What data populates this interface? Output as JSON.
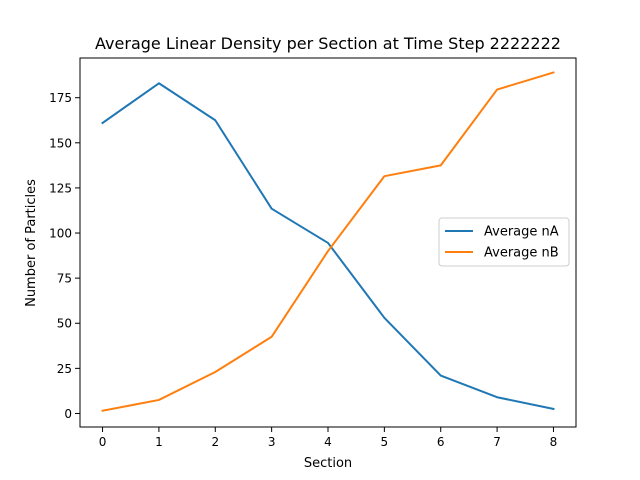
{
  "chart_data": {
    "type": "line",
    "title": "Average Linear Density per Section at Time Step 2222222",
    "xlabel": "Section",
    "ylabel": "Number of Particles",
    "x": [
      0,
      1,
      2,
      3,
      4,
      5,
      6,
      7,
      8
    ],
    "xlim": [
      -0.4,
      8.4
    ],
    "ylim": [
      -7.5,
      197
    ],
    "xticks": [
      0,
      1,
      2,
      3,
      4,
      5,
      6,
      7,
      8
    ],
    "yticks": [
      0,
      25,
      50,
      75,
      100,
      125,
      150,
      175
    ],
    "grid": false,
    "legend_position": "center-right",
    "series": [
      {
        "name": "Average nA",
        "color": "#1f77b4",
        "values": [
          161,
          183,
          162.5,
          113.5,
          94.5,
          53,
          21,
          9,
          2.5
        ]
      },
      {
        "name": "Average nB",
        "color": "#ff7f0e",
        "values": [
          1.5,
          7.5,
          23,
          42.5,
          90,
          131.5,
          137.5,
          179.5,
          189
        ]
      }
    ]
  }
}
